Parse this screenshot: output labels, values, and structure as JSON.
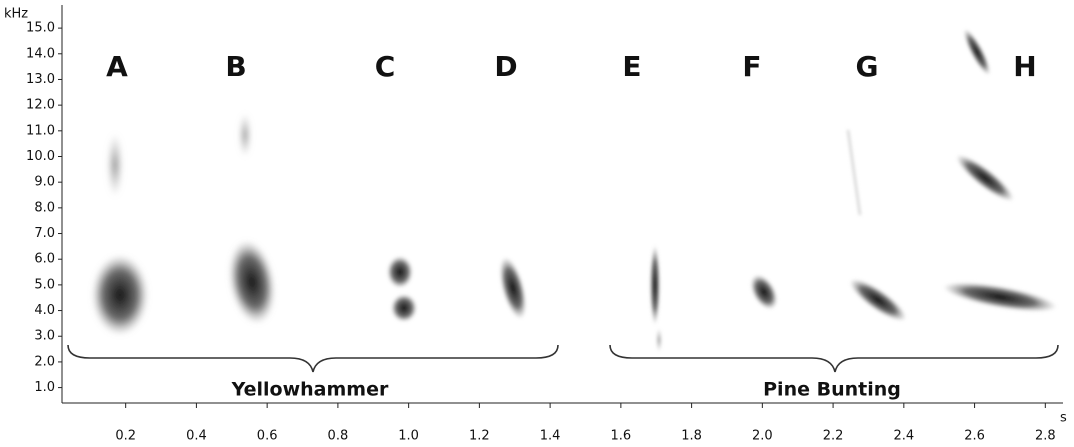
{
  "chart_data": {
    "type": "spectrogram",
    "xlabel": "s",
    "ylabel": "kHz",
    "xlim": [
      0.02,
      2.85
    ],
    "ylim": [
      0.4,
      15.9
    ],
    "xticks": [
      0.2,
      0.4,
      0.6,
      0.8,
      {
        "value": 1,
        "label": "1.0"
      },
      1.2,
      1.4,
      1.6,
      1.8,
      {
        "value": 2,
        "label": "2.0"
      },
      2.2,
      2.4,
      2.6,
      2.8
    ],
    "yticks": [
      {
        "value": 1,
        "label": "1.0"
      },
      {
        "value": 2,
        "label": "2.0"
      },
      {
        "value": 3,
        "label": "3.0"
      },
      {
        "value": 4,
        "label": "4.0"
      },
      {
        "value": 5,
        "label": "5.0"
      },
      {
        "value": 6,
        "label": "6.0"
      },
      {
        "value": 7,
        "label": "7.0"
      },
      {
        "value": 8,
        "label": "8.0"
      },
      {
        "value": 9,
        "label": "9.0"
      },
      {
        "value": 10,
        "label": "10.0"
      },
      {
        "value": 11,
        "label": "11.0"
      },
      {
        "value": 12,
        "label": "12.0"
      },
      {
        "value": 13,
        "label": "13.0"
      },
      {
        "value": 14,
        "label": "14.0"
      },
      {
        "value": 15,
        "label": "15.0"
      }
    ],
    "annotations": [
      "A",
      "B",
      "C",
      "D",
      "E",
      "F",
      "G",
      "H"
    ],
    "groups": [
      "Yellowhammer",
      "Pine Bunting"
    ]
  }
}
